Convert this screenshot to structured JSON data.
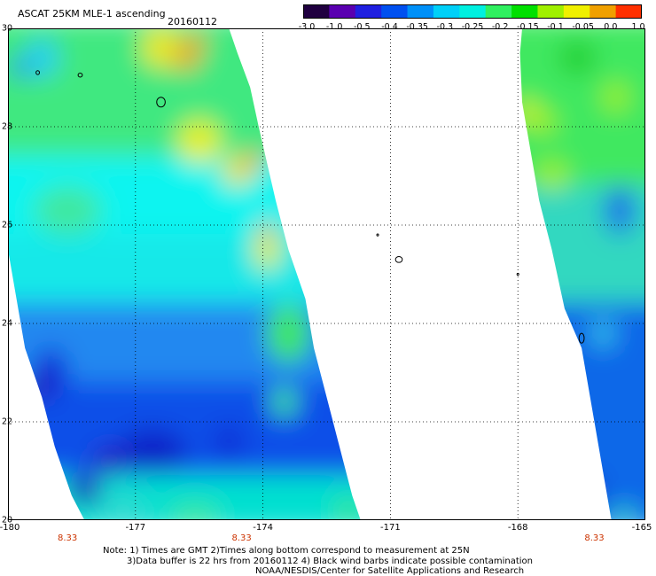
{
  "header": {
    "title": "ASCAT 25KM MLE-1 ascending",
    "date": "20160112"
  },
  "colorbar": {
    "labels": [
      "-3.0",
      "-1.0",
      "-0.5",
      "-0.4",
      "-0.35",
      "-0.3",
      "-0.25",
      "-0.2",
      "-0.15",
      "-0.1",
      "-0.05",
      "0.0",
      "1.0"
    ],
    "colors": [
      "#200040",
      "#5a00b0",
      "#2020e0",
      "#0050f0",
      "#0090f8",
      "#00d0f8",
      "#00f0e0",
      "#30f060",
      "#00e000",
      "#a0f000",
      "#f0f000",
      "#f0a000",
      "#ff3000"
    ]
  },
  "map": {
    "lon_range": [
      -180,
      -165
    ],
    "lat_range": [
      20,
      30
    ],
    "lat_labels": [
      "30",
      "28",
      "26",
      "24",
      "22",
      "20"
    ],
    "lon_labels": [
      "-180",
      "-177",
      "-174",
      "-171",
      "-168",
      "-165"
    ],
    "time_labels": [
      "8.33",
      "8.33",
      "8.33"
    ],
    "grid": true,
    "swaths": [
      {
        "name": "west",
        "points": [
          [
            -180,
            30
          ],
          [
            -174.8,
            30
          ],
          [
            -174.6,
            29.5
          ],
          [
            -174.3,
            28.8
          ],
          [
            -174.1,
            28.0
          ],
          [
            -173.7,
            26.5
          ],
          [
            -173.4,
            25.5
          ],
          [
            -173.0,
            24.5
          ],
          [
            -172.8,
            23.5
          ],
          [
            -172.5,
            22.5
          ],
          [
            -172.2,
            21.5
          ],
          [
            -171.9,
            20.5
          ],
          [
            -171.7,
            20
          ],
          [
            -178.2,
            20
          ],
          [
            -178.5,
            20.5
          ],
          [
            -178.9,
            21.5
          ],
          [
            -179.2,
            22.5
          ],
          [
            -179.6,
            23.5
          ],
          [
            -179.8,
            24.5
          ],
          [
            -180,
            25.5
          ]
        ]
      },
      {
        "name": "east",
        "points": [
          [
            -167.9,
            30
          ],
          [
            -165,
            30
          ],
          [
            -165,
            20
          ],
          [
            -165.8,
            20
          ],
          [
            -166.1,
            21.5
          ],
          [
            -166.3,
            22.5
          ],
          [
            -166.5,
            23.5
          ],
          [
            -166.9,
            24.3
          ],
          [
            -167.2,
            25.5
          ],
          [
            -167.5,
            26.5
          ],
          [
            -167.9,
            28.5
          ],
          [
            -167.95,
            29.5
          ]
        ]
      }
    ],
    "bands": [
      {
        "swath": "west",
        "lat_from": 30,
        "lat_to": 27.2,
        "color": "#40e880"
      },
      {
        "swath": "west",
        "lat_from": 27.2,
        "lat_to": 25.6,
        "color": "#10f4f0"
      },
      {
        "swath": "west",
        "lat_from": 25.6,
        "lat_to": 24.2,
        "color": "#18e8e8"
      },
      {
        "swath": "west",
        "lat_from": 24.2,
        "lat_to": 22.6,
        "color": "#2088f0"
      },
      {
        "swath": "west",
        "lat_from": 22.6,
        "lat_to": 20.7,
        "color": "#1050e8"
      },
      {
        "swath": "west",
        "lat_from": 20.7,
        "lat_to": 20,
        "color": "#00e0d0"
      },
      {
        "swath": "east",
        "lat_from": 30,
        "lat_to": 26.6,
        "color": "#40e860"
      },
      {
        "swath": "east",
        "lat_from": 26.6,
        "lat_to": 24.2,
        "color": "#30d8c0"
      },
      {
        "swath": "east",
        "lat_from": 24.2,
        "lat_to": 20,
        "color": "#1068e8"
      }
    ],
    "patches": [
      {
        "lon": -176.4,
        "lat": 29.6,
        "rx": 0.45,
        "ry": 0.4,
        "color": "#f0e800"
      },
      {
        "lon": -175.8,
        "lat": 29.4,
        "rx": 0.3,
        "ry": 0.25,
        "color": "#f0a000"
      },
      {
        "lon": -175.6,
        "lat": 29.7,
        "rx": 0.25,
        "ry": 0.2,
        "color": "#f0a000"
      },
      {
        "lon": -175.5,
        "lat": 27.7,
        "rx": 0.5,
        "ry": 0.45,
        "color": "#e8f000"
      },
      {
        "lon": -174.6,
        "lat": 27.1,
        "rx": 0.35,
        "ry": 0.3,
        "color": "#f0e000"
      },
      {
        "lon": -174.2,
        "lat": 27.3,
        "rx": 0.2,
        "ry": 0.2,
        "color": "#f09000"
      },
      {
        "lon": -173.9,
        "lat": 25.5,
        "rx": 0.3,
        "ry": 0.4,
        "color": "#e8f000"
      },
      {
        "lon": -173.9,
        "lat": 25.9,
        "rx": 0.15,
        "ry": 0.2,
        "color": "#f09000"
      },
      {
        "lon": -179.2,
        "lat": 29.4,
        "rx": 0.4,
        "ry": 0.4,
        "color": "#28d0f0"
      },
      {
        "lon": -179.7,
        "lat": 29.2,
        "rx": 0.25,
        "ry": 0.2,
        "color": "#1a8cf0"
      },
      {
        "lon": -178.6,
        "lat": 26.3,
        "rx": 0.8,
        "ry": 0.5,
        "color": "#40e8a0"
      },
      {
        "lon": -173.4,
        "lat": 23.8,
        "rx": 0.5,
        "ry": 0.6,
        "color": "#40e860"
      },
      {
        "lon": -179.0,
        "lat": 23.0,
        "rx": 0.4,
        "ry": 0.5,
        "color": "#0a28d8"
      },
      {
        "lon": -179.3,
        "lat": 22.7,
        "rx": 0.2,
        "ry": 0.25,
        "color": "#3000a0"
      },
      {
        "lon": -176.6,
        "lat": 21.4,
        "rx": 0.8,
        "ry": 0.45,
        "color": "#0a20c8"
      },
      {
        "lon": -177.6,
        "lat": 21.2,
        "rx": 0.4,
        "ry": 0.3,
        "color": "#2a10c0"
      },
      {
        "lon": -178.2,
        "lat": 20.6,
        "rx": 0.4,
        "ry": 0.3,
        "color": "#2010b8"
      },
      {
        "lon": -174.8,
        "lat": 21.6,
        "rx": 0.4,
        "ry": 0.35,
        "color": "#1030d8"
      },
      {
        "lon": -177.3,
        "lat": 20.2,
        "rx": 0.6,
        "ry": 0.25,
        "color": "#30d8d0"
      },
      {
        "lon": -175.6,
        "lat": 20.1,
        "rx": 0.6,
        "ry": 0.2,
        "color": "#40e890"
      },
      {
        "lon": -172.0,
        "lat": 20.2,
        "rx": 0.3,
        "ry": 0.2,
        "color": "#40e860"
      },
      {
        "lon": -173.5,
        "lat": 22.4,
        "rx": 0.3,
        "ry": 0.3,
        "color": "#40e890"
      },
      {
        "lon": -166.6,
        "lat": 29.4,
        "rx": 0.45,
        "ry": 0.35,
        "color": "#20d030"
      },
      {
        "lon": -167.8,
        "lat": 28.3,
        "rx": 0.2,
        "ry": 0.25,
        "color": "#e8f000"
      },
      {
        "lon": -167.4,
        "lat": 28.1,
        "rx": 0.3,
        "ry": 0.25,
        "color": "#a0f000"
      },
      {
        "lon": -167.2,
        "lat": 27.0,
        "rx": 0.4,
        "ry": 0.3,
        "color": "#a0f000"
      },
      {
        "lon": -165.7,
        "lat": 28.6,
        "rx": 0.3,
        "ry": 0.3,
        "color": "#a0f000"
      },
      {
        "lon": -165.6,
        "lat": 26.3,
        "rx": 0.35,
        "ry": 0.5,
        "color": "#1a68e8"
      },
      {
        "lon": -166.3,
        "lat": 20.6,
        "rx": 0.2,
        "ry": 0.3,
        "color": "#2010c0"
      },
      {
        "lon": -165.5,
        "lat": 20.1,
        "rx": 0.4,
        "ry": 0.15,
        "color": "#30d8c0"
      },
      {
        "lon": -166.0,
        "lat": 23.8,
        "rx": 0.3,
        "ry": 0.3,
        "color": "#30c0e8"
      }
    ],
    "islands": [
      {
        "lon": -179.3,
        "lat": 29.1,
        "rx": 0.04,
        "ry": 0.04
      },
      {
        "lon": -178.3,
        "lat": 29.05,
        "rx": 0.05,
        "ry": 0.04
      },
      {
        "lon": -176.4,
        "lat": 28.5,
        "rx": 0.1,
        "ry": 0.1
      },
      {
        "lon": -171.3,
        "lat": 25.8,
        "rx": 0.02,
        "ry": 0.02
      },
      {
        "lon": -170.8,
        "lat": 25.3,
        "rx": 0.08,
        "ry": 0.06
      },
      {
        "lon": -168.0,
        "lat": 25.0,
        "rx": 0.02,
        "ry": 0.02
      },
      {
        "lon": -166.5,
        "lat": 23.7,
        "rx": 0.06,
        "ry": 0.1
      }
    ]
  },
  "notes": {
    "line1": "Note: 1) Times are GMT 2)Times along bottom correspond to measurement at 25N",
    "line2": "3)Data buffer is 22 hrs from 20160112 4) Black wind barbs indicate possible contamination",
    "line3": "NOAA/NESDIS/Center for Satellite Applications and Research"
  }
}
